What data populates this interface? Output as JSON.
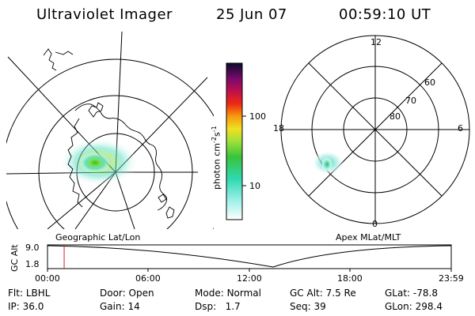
{
  "header": {
    "title": "Ultraviolet Imager",
    "date": "25 Jun 07",
    "time": "00:59:10 UT"
  },
  "colorbar": {
    "unit_text": "photon cm",
    "unit_exp1": "-2",
    "unit_s": "s",
    "unit_exp2": "-1",
    "tick_100": "100",
    "tick_10": "10"
  },
  "geo_map": {
    "label": "Geographic Lat/Lon"
  },
  "apex_map": {
    "label": "Apex MLat/MLT",
    "mlt_top": "12",
    "mlt_left": "18",
    "mlt_right": "6",
    "mlt_bottom": "0",
    "lat_60": "60",
    "lat_70": "70",
    "lat_80": "80"
  },
  "timeline": {
    "ylabel": "GC Alt",
    "ymax": "9.0",
    "ymin": "1.8",
    "ticks": [
      "00:00",
      "06:00",
      "12:00",
      "18:00",
      "23:59"
    ],
    "marker_hour": 0.99
  },
  "info": {
    "flt_label": "Flt:",
    "flt": "LBHL",
    "door_label": "Door:",
    "door": "Open",
    "mode_label": "Mode:",
    "mode": "Normal",
    "gcalt_label": "GC Alt:",
    "gcalt": "7.5 Re",
    "glat_label": "GLat:",
    "glat": "-78.8",
    "ip_label": "IP:",
    "ip": "36.0",
    "gain_label": "Gain:",
    "gain": "14",
    "dsp_label": "Dsp:",
    "dsp": "1.7",
    "seq_label": "Seq:",
    "seq": "39",
    "glon_label": "GLon:",
    "glon": "298.4"
  },
  "colors": {
    "aurora_core": "#39c02a",
    "aurora_mid": "#57e0c0",
    "aurora_edge": "#c7f1ef",
    "marker": "#cc2222"
  }
}
